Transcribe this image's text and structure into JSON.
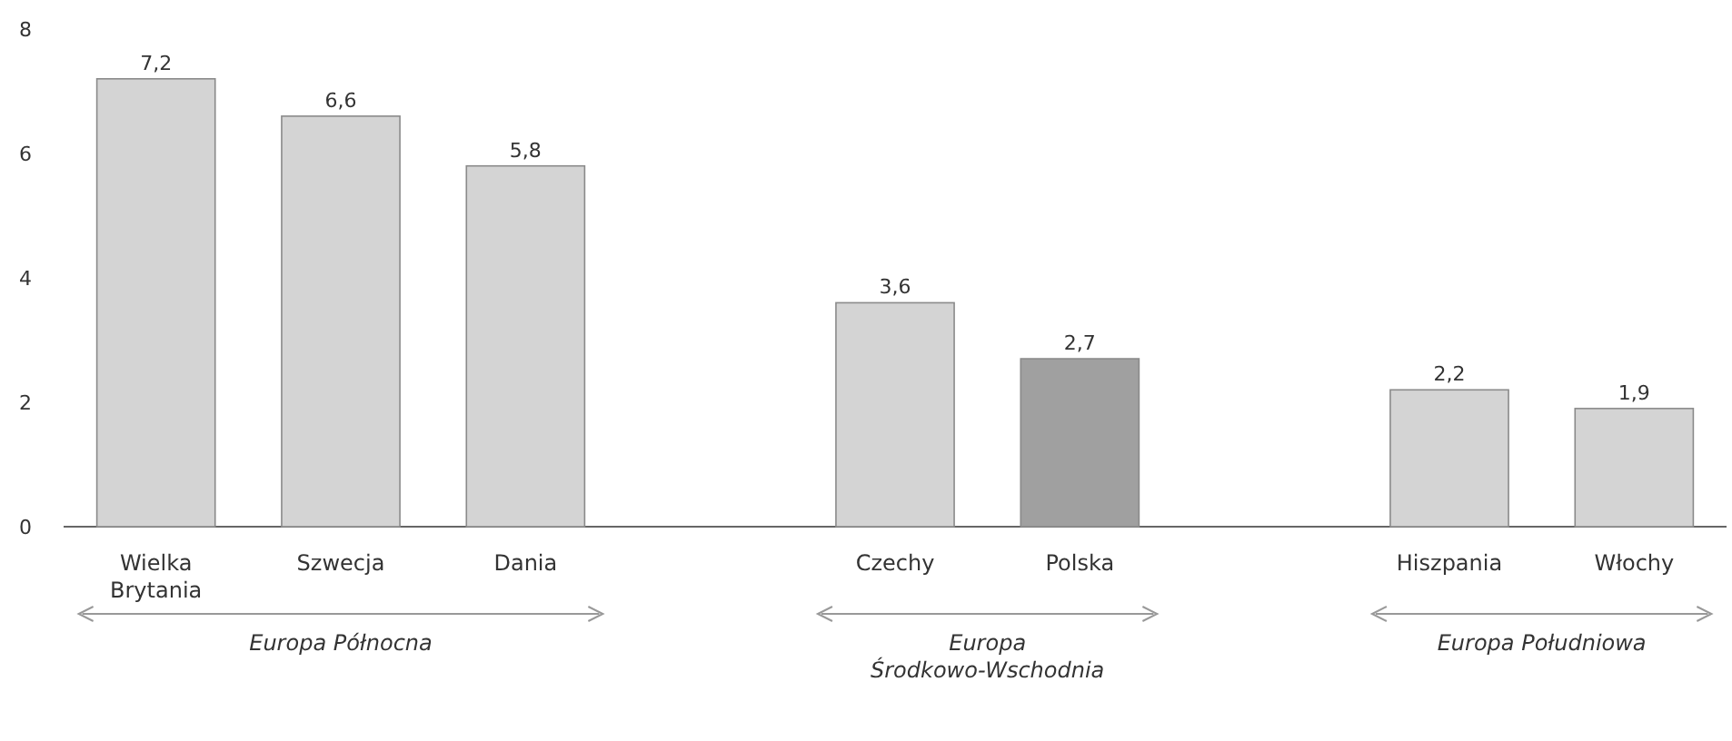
{
  "chart_data": {
    "type": "bar",
    "categories": [
      "Wielka Brytania",
      "Szwecja",
      "Dania",
      null,
      "Czechy",
      "Polska",
      null,
      "Hiszpania",
      "Włochy"
    ],
    "values": [
      7.2,
      6.6,
      5.8,
      null,
      3.6,
      2.7,
      null,
      2.2,
      1.9
    ],
    "value_labels": [
      "7,2",
      "6,6",
      "5,8",
      null,
      "3,6",
      "2,7",
      null,
      "2,2",
      "1,9"
    ],
    "colors": [
      "#d4d4d4",
      "#d4d4d4",
      "#d4d4d4",
      null,
      "#d4d4d4",
      "#a0a0a0",
      null,
      "#d4d4d4",
      "#d4d4d4"
    ],
    "ylim": [
      0,
      8
    ],
    "yticks": [
      0,
      2,
      4,
      6,
      8
    ],
    "grid": false,
    "annotations": [
      "Europa Północna",
      "Europa\nŚrodkowo-Wschodnia",
      "Europa Południowa"
    ]
  }
}
